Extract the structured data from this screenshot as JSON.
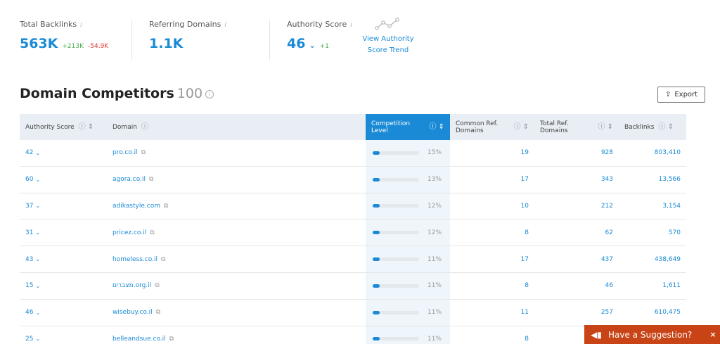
{
  "metrics": {
    "total_backlinks": {
      "label": "Total Backlinks",
      "value": "563K",
      "delta_up": "+213K",
      "delta_down": "-54.9K",
      "info": "i"
    },
    "referring_domains": {
      "label": "Referring Domains",
      "value": "1.1K",
      "info": "i"
    },
    "authority_score": {
      "label": "Authority Score",
      "value": "46",
      "delta_up": "+1",
      "info": "i",
      "chevron": "⌄"
    },
    "trend": {
      "icon": "line-trend-icon",
      "label_line1": "View Authority",
      "label_line2": "Score Trend"
    }
  },
  "section": {
    "title": "Domain Competitors",
    "count": "100",
    "info": "i",
    "export_label": "Export",
    "export_icon": "export-icon"
  },
  "table": {
    "headers": {
      "authority_score": "Authority Score",
      "domain": "Domain",
      "competition_level_l1": "Competition",
      "competition_level_l2": "Level",
      "common_ref_l1": "Common Ref.",
      "common_ref_l2": "Domains",
      "total_ref_l1": "Total Ref.",
      "total_ref_l2": "Domains",
      "backlinks": "Backlinks"
    },
    "rows": [
      {
        "score": "42",
        "domain": "pro.co.il",
        "competition": 0.15,
        "competition_label": "15%",
        "common_ref": "19",
        "total_ref": "928",
        "backlinks": "803,410"
      },
      {
        "score": "60",
        "domain": "agora.co.il",
        "competition": 0.13,
        "competition_label": "13%",
        "common_ref": "17",
        "total_ref": "343",
        "backlinks": "13,566"
      },
      {
        "score": "37",
        "domain": "adikastyle.com",
        "competition": 0.12,
        "competition_label": "12%",
        "common_ref": "10",
        "total_ref": "212",
        "backlinks": "3,154"
      },
      {
        "score": "31",
        "domain": "pricez.co.il",
        "competition": 0.12,
        "competition_label": "12%",
        "common_ref": "8",
        "total_ref": "62",
        "backlinks": "570"
      },
      {
        "score": "43",
        "domain": "homeless.co.il",
        "competition": 0.11,
        "competition_label": "11%",
        "common_ref": "17",
        "total_ref": "437",
        "backlinks": "438,649"
      },
      {
        "score": "15",
        "domain": "מצברים.org.il",
        "competition": 0.11,
        "competition_label": "11%",
        "common_ref": "8",
        "total_ref": "46",
        "backlinks": "1,611"
      },
      {
        "score": "46",
        "domain": "wisebuy.co.il",
        "competition": 0.11,
        "competition_label": "11%",
        "common_ref": "11",
        "total_ref": "257",
        "backlinks": "610,475"
      },
      {
        "score": "25",
        "domain": "belleandsue.co.il",
        "competition": 0.11,
        "competition_label": "11%",
        "common_ref": "8",
        "total_ref": "",
        "backlinks": ""
      }
    ]
  },
  "suggestion": {
    "label": "Have a Suggestion?",
    "close": "×",
    "icon": "megaphone-icon"
  },
  "colors": {
    "accent": "#1a8ad6",
    "positive": "#4caf50",
    "negative": "#e53935",
    "suggestion_bg": "#c84315"
  }
}
